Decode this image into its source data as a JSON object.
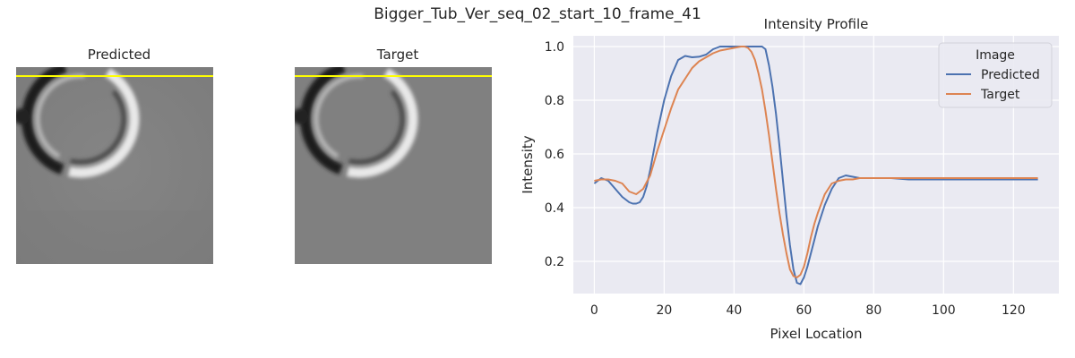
{
  "figure": {
    "suptitle": "Bigger_Tub_Ver_seq_02_start_10_frame_41"
  },
  "panels": {
    "predicted_title": "Predicted",
    "target_title": "Target",
    "profile_line_color": "#ffff00"
  },
  "chart_data": {
    "type": "line",
    "title": "Intensity Profile",
    "xlabel": "Pixel Location",
    "ylabel": "Intensity",
    "xlim": [
      -6,
      133
    ],
    "ylim": [
      0.08,
      1.04
    ],
    "xticks": [
      0,
      20,
      40,
      60,
      80,
      100,
      120
    ],
    "yticks": [
      0.2,
      0.4,
      0.6,
      0.8,
      1.0
    ],
    "xtick_labels": [
      "0",
      "20",
      "40",
      "60",
      "80",
      "100",
      "120"
    ],
    "ytick_labels": [
      "0.2",
      "0.4",
      "0.6",
      "0.8",
      "1.0"
    ],
    "grid": true,
    "legend": {
      "title": "Image",
      "placement": "top-right"
    },
    "series": [
      {
        "name": "Predicted",
        "color": "#4c72b0",
        "x": [
          0,
          2,
          4,
          6,
          8,
          10,
          11,
          12,
          13,
          14,
          15,
          16,
          18,
          20,
          22,
          24,
          26,
          28,
          30,
          32,
          34,
          36,
          38,
          40,
          42,
          44,
          46,
          48,
          49,
          50,
          51,
          52,
          53,
          54,
          55,
          56,
          57,
          58,
          59,
          60,
          61,
          62,
          63,
          64,
          66,
          68,
          70,
          72,
          74,
          76,
          80,
          85,
          90,
          95,
          100,
          105,
          110,
          115,
          120,
          125,
          127
        ],
        "y": [
          0.49,
          0.51,
          0.5,
          0.47,
          0.44,
          0.42,
          0.415,
          0.415,
          0.42,
          0.44,
          0.48,
          0.54,
          0.68,
          0.8,
          0.89,
          0.95,
          0.965,
          0.96,
          0.962,
          0.97,
          0.99,
          1.0,
          1.0,
          1.0,
          1.0,
          1.0,
          1.0,
          1.0,
          0.99,
          0.93,
          0.85,
          0.75,
          0.63,
          0.5,
          0.37,
          0.26,
          0.17,
          0.12,
          0.115,
          0.14,
          0.18,
          0.23,
          0.28,
          0.33,
          0.41,
          0.47,
          0.51,
          0.52,
          0.515,
          0.51,
          0.51,
          0.51,
          0.505,
          0.505,
          0.505,
          0.505,
          0.505,
          0.505,
          0.505,
          0.505,
          0.505
        ]
      },
      {
        "name": "Target",
        "color": "#dd8452",
        "x": [
          0,
          2,
          4,
          6,
          8,
          10,
          12,
          14,
          16,
          18,
          20,
          22,
          24,
          26,
          28,
          30,
          32,
          34,
          36,
          38,
          40,
          42,
          43,
          44,
          45,
          46,
          47,
          48,
          49,
          50,
          51,
          52,
          53,
          54,
          55,
          56,
          57,
          58,
          59,
          60,
          61,
          62,
          63,
          64,
          66,
          68,
          70,
          72,
          74,
          76,
          80,
          85,
          90,
          95,
          100,
          105,
          110,
          115,
          120,
          125,
          127
        ],
        "y": [
          0.5,
          0.505,
          0.505,
          0.5,
          0.49,
          0.46,
          0.45,
          0.47,
          0.52,
          0.61,
          0.69,
          0.77,
          0.84,
          0.88,
          0.92,
          0.945,
          0.96,
          0.975,
          0.985,
          0.99,
          0.995,
          1.0,
          1.0,
          0.995,
          0.98,
          0.95,
          0.9,
          0.84,
          0.76,
          0.67,
          0.57,
          0.47,
          0.38,
          0.3,
          0.23,
          0.17,
          0.145,
          0.14,
          0.15,
          0.18,
          0.23,
          0.29,
          0.34,
          0.38,
          0.45,
          0.49,
          0.5,
          0.505,
          0.505,
          0.51,
          0.51,
          0.51,
          0.51,
          0.51,
          0.51,
          0.51,
          0.51,
          0.51,
          0.51,
          0.51,
          0.51
        ]
      }
    ]
  }
}
